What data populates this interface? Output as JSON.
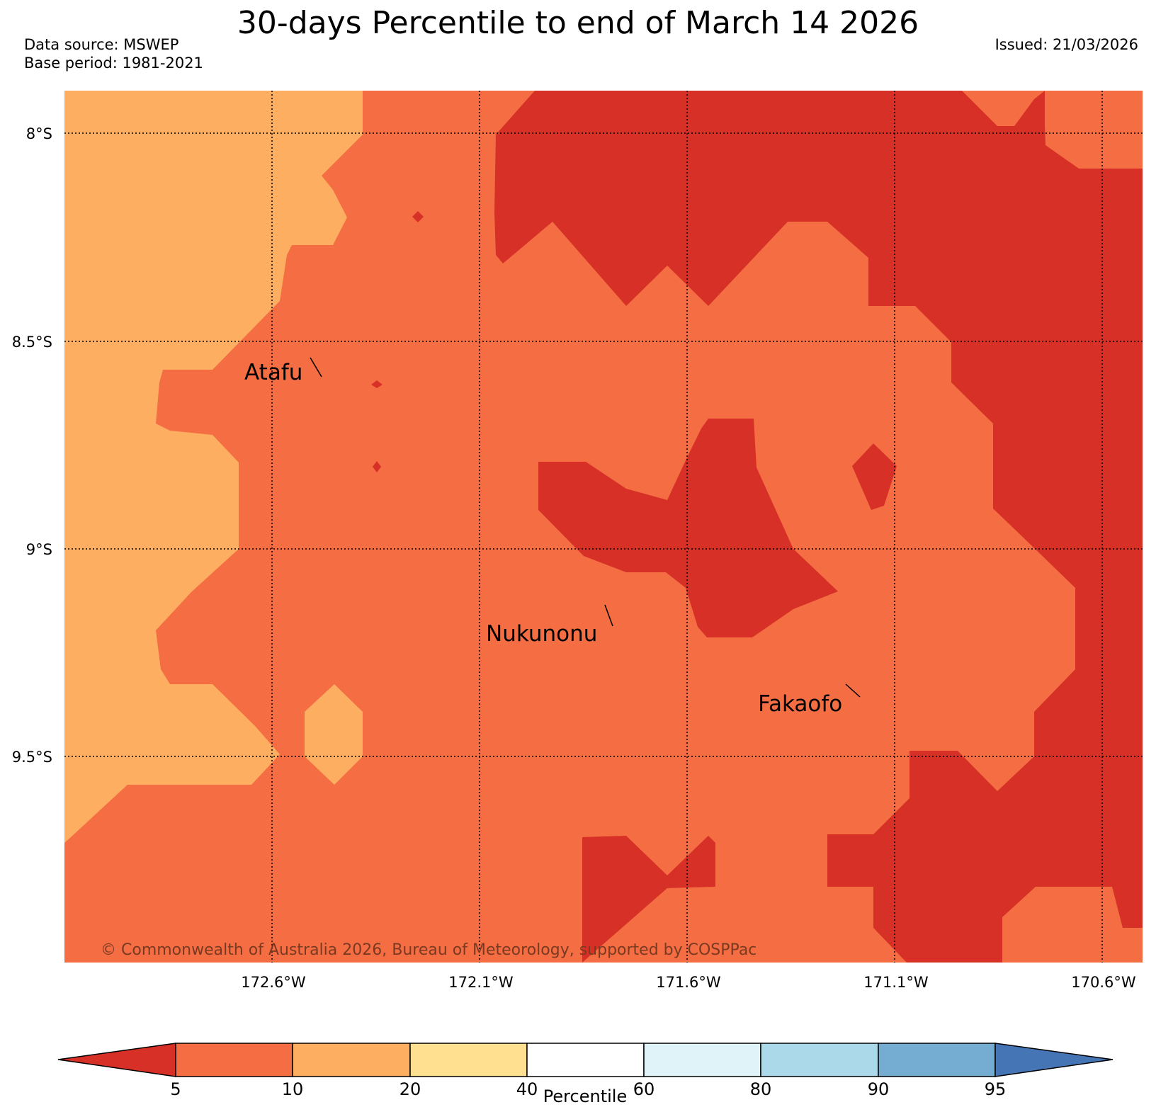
{
  "title": "30-days Percentile to end of March 14 2026",
  "data_source": "Data source: MSWEP",
  "base_period": "Base period: 1981-2021",
  "issued": "Issued: 21/03/2026",
  "copyright": "© Commonwealth of Australia 2026, Bureau of Meteorology, supported by COSPPac",
  "lat_labels": [
    "8°S",
    "8.5°S",
    "9°S",
    "9.5°S"
  ],
  "lon_labels": [
    "172.6°W",
    "172.1°W",
    "171.6°W",
    "171.1°W",
    "170.6°W"
  ],
  "places": {
    "atafu": "Atafu",
    "nukunonu": "Nukunonu",
    "fakaofo": "Fakaofo"
  },
  "colorbar": {
    "label": "Percentile",
    "ticks": [
      "5",
      "10",
      "20",
      "40",
      "60",
      "80",
      "90",
      "95"
    ],
    "colors": {
      "lt5": "#d73027",
      "p5_10": "#f46d43",
      "p10_20": "#fdae61",
      "p20_40": "#fee090",
      "p40_60": "#ffffff",
      "p60_80": "#e0f3f8",
      "p80_90": "#abd9e9",
      "p90_95": "#74add1",
      "gt95": "#4575b4"
    }
  }
}
